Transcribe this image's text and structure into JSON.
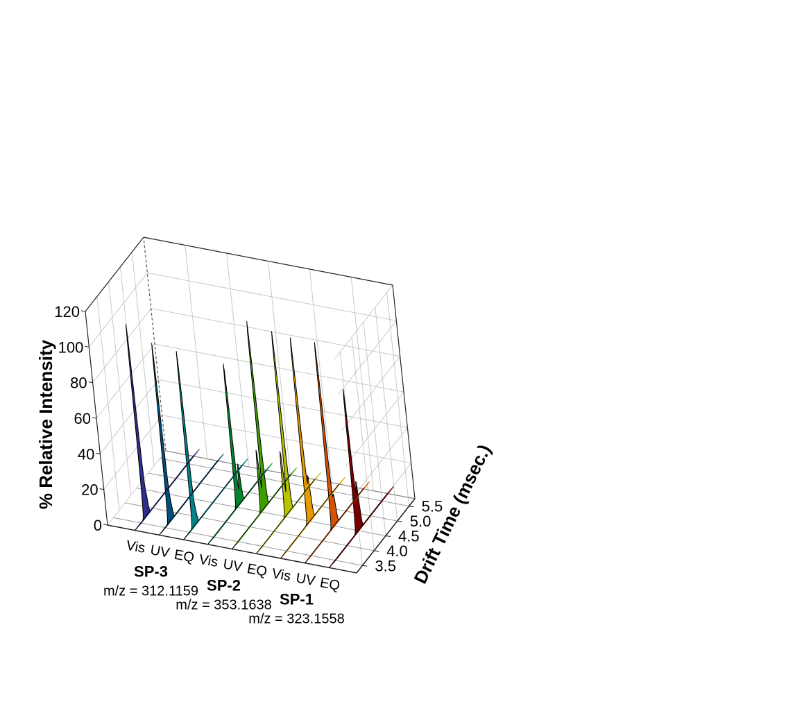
{
  "chart_data": {
    "type": "area",
    "subtype": "3d-waterfall",
    "title": "",
    "zlabel": "% Relative Intensity",
    "ylabel": "Drift Time (msec.)",
    "zlim": [
      0,
      120
    ],
    "ylim": [
      3.25,
      5.75
    ],
    "z_ticks": [
      "0",
      "20",
      "40",
      "60",
      "80",
      "100",
      "120"
    ],
    "y_ticks": [
      "3.5",
      "4.0",
      "4.5",
      "5.0",
      "5.5"
    ],
    "grid": true,
    "groups": [
      {
        "name": "SP-3",
        "mz": "m/z = 312.1159"
      },
      {
        "name": "SP-2",
        "mz": "m/z = 353.1638"
      },
      {
        "name": "SP-1",
        "mz": "m/z = 323.1558"
      }
    ],
    "series": [
      {
        "group": 0,
        "condition": "Vis",
        "color": "#2e2e8c",
        "peaks": [
          {
            "t": 3.72,
            "h": 108,
            "w": 0.035
          },
          {
            "t": 3.82,
            "h": 10,
            "w": 0.03
          }
        ]
      },
      {
        "group": 0,
        "condition": "UV",
        "color": "#004f7d",
        "peaks": [
          {
            "t": 3.72,
            "h": 100,
            "w": 0.035
          },
          {
            "t": 3.82,
            "h": 8,
            "w": 0.03
          }
        ]
      },
      {
        "group": 0,
        "condition": "EQ",
        "color": "#00838a",
        "peaks": [
          {
            "t": 3.72,
            "h": 98,
            "w": 0.035
          },
          {
            "t": 3.82,
            "h": 7,
            "w": 0.03
          }
        ]
      },
      {
        "group": 1,
        "condition": "Vis",
        "color": "#00852e",
        "peaks": [
          {
            "t": 4.55,
            "h": 80,
            "w": 0.035
          },
          {
            "t": 4.7,
            "h": 21,
            "w": 0.035
          }
        ]
      },
      {
        "group": 1,
        "condition": "UV",
        "color": "#3c9e00",
        "peaks": [
          {
            "t": 4.55,
            "h": 34,
            "w": 0.035
          },
          {
            "t": 4.7,
            "h": 104,
            "w": 0.035
          }
        ]
      },
      {
        "group": 1,
        "condition": "EQ",
        "color": "#b8c400",
        "peaks": [
          {
            "t": 4.55,
            "h": 36,
            "w": 0.035
          },
          {
            "t": 4.7,
            "h": 101,
            "w": 0.035
          }
        ]
      },
      {
        "group": 2,
        "condition": "Vis",
        "color": "#e89a00",
        "peaks": [
          {
            "t": 4.48,
            "h": 104,
            "w": 0.035
          },
          {
            "t": 4.6,
            "h": 24,
            "w": 0.035
          }
        ]
      },
      {
        "group": 2,
        "condition": "UV",
        "color": "#d45200",
        "peaks": [
          {
            "t": 4.48,
            "h": 104,
            "w": 0.035
          },
          {
            "t": 4.6,
            "h": 16,
            "w": 0.035
          }
        ]
      },
      {
        "group": 2,
        "condition": "EQ",
        "color": "#7a0000",
        "peaks": [
          {
            "t": 4.48,
            "h": 80,
            "w": 0.035
          },
          {
            "t": 4.6,
            "h": 26,
            "w": 0.035
          }
        ]
      }
    ]
  }
}
